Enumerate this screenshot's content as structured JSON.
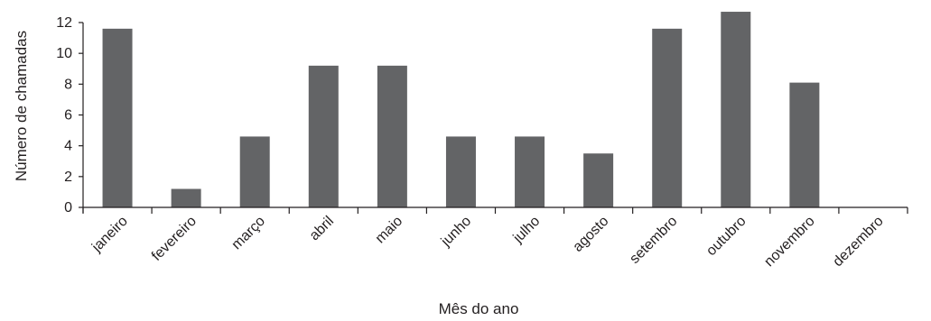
{
  "chart_data": {
    "type": "bar",
    "title": "",
    "xlabel": "Mês do ano",
    "ylabel": "Número de chamadas",
    "categories": [
      "janeiro",
      "fevereiro",
      "março",
      "abril",
      "maio",
      "junho",
      "julho",
      "agosto",
      "setembro",
      "outubro",
      "novembro",
      "dezembro"
    ],
    "values": [
      11.6,
      1.2,
      4.6,
      9.2,
      9.2,
      4.6,
      4.6,
      3.5,
      11.6,
      12.7,
      8.1,
      0
    ],
    "ylim": [
      0,
      12
    ],
    "yticks": [
      0,
      2,
      4,
      6,
      8,
      10,
      12
    ],
    "grid": false,
    "legend": "none",
    "bar_color": "#636466"
  }
}
